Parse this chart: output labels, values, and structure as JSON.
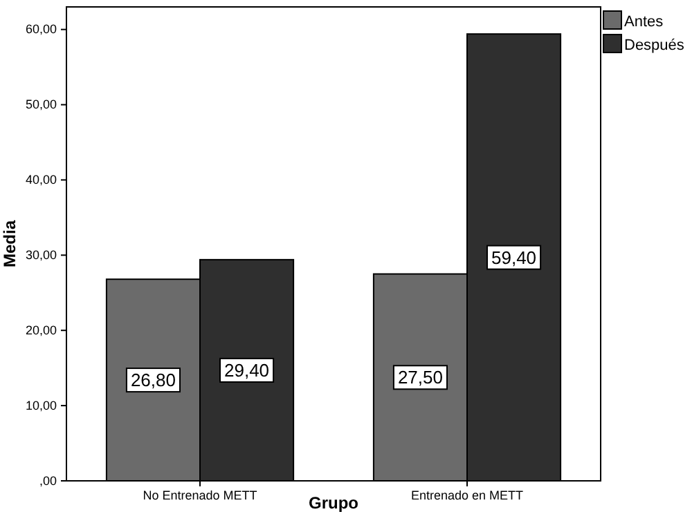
{
  "chart_data": {
    "type": "bar",
    "xlabel": "Grupo",
    "ylabel": "Media",
    "categories": [
      "No Entrenado METT",
      "Entrenado en METT"
    ],
    "series": [
      {
        "name": "Antes",
        "color": "#6b6b6b",
        "values": [
          26.8,
          27.5
        ],
        "value_labels": [
          "26,80",
          "27,50"
        ]
      },
      {
        "name": "Después",
        "color": "#2f2f2f",
        "values": [
          29.4,
          59.4
        ],
        "value_labels": [
          "29,40",
          "59,40"
        ]
      }
    ],
    "ylim": [
      0,
      63
    ],
    "yticks": [
      {
        "value": 0,
        "label": ",00"
      },
      {
        "value": 10,
        "label": "10,00"
      },
      {
        "value": 20,
        "label": "20,00"
      },
      {
        "value": 30,
        "label": "30,00"
      },
      {
        "value": 40,
        "label": "40,00"
      },
      {
        "value": 50,
        "label": "50,00"
      },
      {
        "value": 60,
        "label": "60,00"
      }
    ],
    "grid": false,
    "legend": "top right"
  }
}
